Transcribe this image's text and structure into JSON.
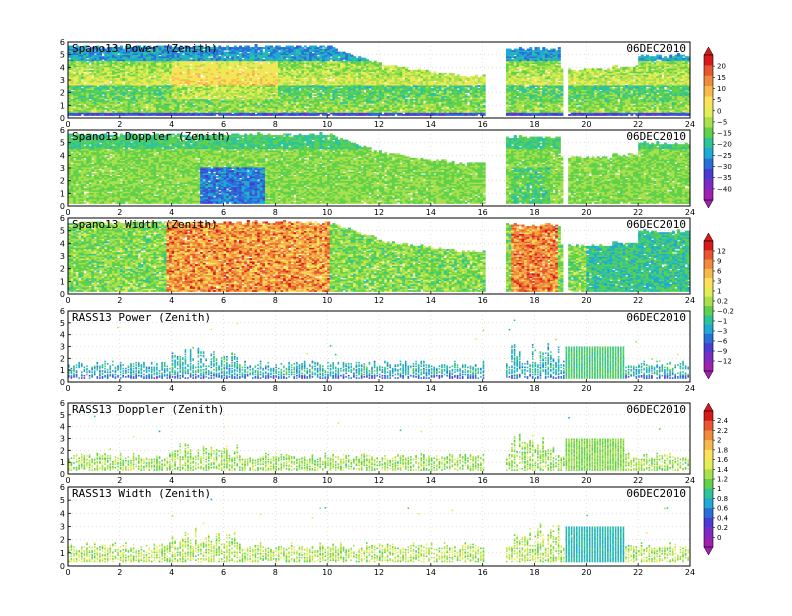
{
  "chart_data": {
    "type": "heatmap",
    "x_ticks": [
      0,
      2,
      4,
      6,
      8,
      10,
      12,
      14,
      16,
      18,
      20,
      22,
      24
    ],
    "y_ticks": [
      0,
      1,
      2,
      3,
      4,
      5,
      6
    ],
    "xlim": [
      0,
      24
    ],
    "ylim": [
      0,
      6
    ],
    "grid": true,
    "data_gap_hours": [
      16.0,
      16.8
    ],
    "panels": [
      {
        "title": "Spano13 Power (Zenith)",
        "date": "06DEC2010",
        "field": "power",
        "colorbar": "cb1"
      },
      {
        "title": "Spano13 Doppler (Zenith)",
        "date": "06DEC2010",
        "field": "doppler",
        "colorbar": "cb1"
      },
      {
        "title": "Spano13 Width (Zenith)",
        "date": "06DEC2010",
        "field": "width",
        "colorbar": "cb2"
      },
      {
        "title": "RASS13 Power (Zenith)",
        "date": "06DEC2010",
        "field": "rpower",
        "colorbar": "cb2"
      },
      {
        "title": "RASS13 Doppler (Zenith)",
        "date": "06DEC2010",
        "field": "rdoppler",
        "colorbar": "cb3"
      },
      {
        "title": "RASS13 Width (Zenith)",
        "date": "06DEC2010",
        "field": "rwidth",
        "colorbar": "cb3"
      }
    ],
    "colorbars": {
      "cb1": {
        "labels": [
          "20",
          "15",
          "10",
          "5",
          "0",
          "−5",
          "−15",
          "−20",
          "−25",
          "−30",
          "−35",
          "−40"
        ],
        "colors": [
          "#d7191c",
          "#e8552e",
          "#f08a3c",
          "#f6b94a",
          "#fde15a",
          "#e3ee55",
          "#a9e04c",
          "#5fd14a",
          "#2fc39a",
          "#1fa9d6",
          "#2a6fd8",
          "#4a3cd0",
          "#7e2bc4",
          "#a020b0"
        ]
      },
      "cb2": {
        "labels": [
          "12",
          "9",
          "6",
          "3",
          "1",
          "0.2",
          "−0.2",
          "−1",
          "−3",
          "−6",
          "−9",
          "−12"
        ],
        "colors": [
          "#d7191c",
          "#e8552e",
          "#f08a3c",
          "#f6b94a",
          "#fde15a",
          "#e3ee55",
          "#a9e04c",
          "#5fd14a",
          "#2fc39a",
          "#1fa9d6",
          "#2a6fd8",
          "#4a3cd0",
          "#7e2bc4",
          "#a020b0"
        ]
      },
      "cb3": {
        "labels": [
          "2.4",
          "2.2",
          "2",
          "1.8",
          "1.6",
          "1.4",
          "1.2",
          "1",
          "0.8",
          "0.6",
          "0.4",
          "0.2",
          "0"
        ],
        "colors": [
          "#d7191c",
          "#e8552e",
          "#f08a3c",
          "#f6b94a",
          "#fde15a",
          "#e3ee55",
          "#a9e04c",
          "#5fd14a",
          "#2fc39a",
          "#1fa9d6",
          "#2a6fd8",
          "#4a3cd0",
          "#7e2bc4",
          "#a020b0"
        ]
      }
    }
  }
}
